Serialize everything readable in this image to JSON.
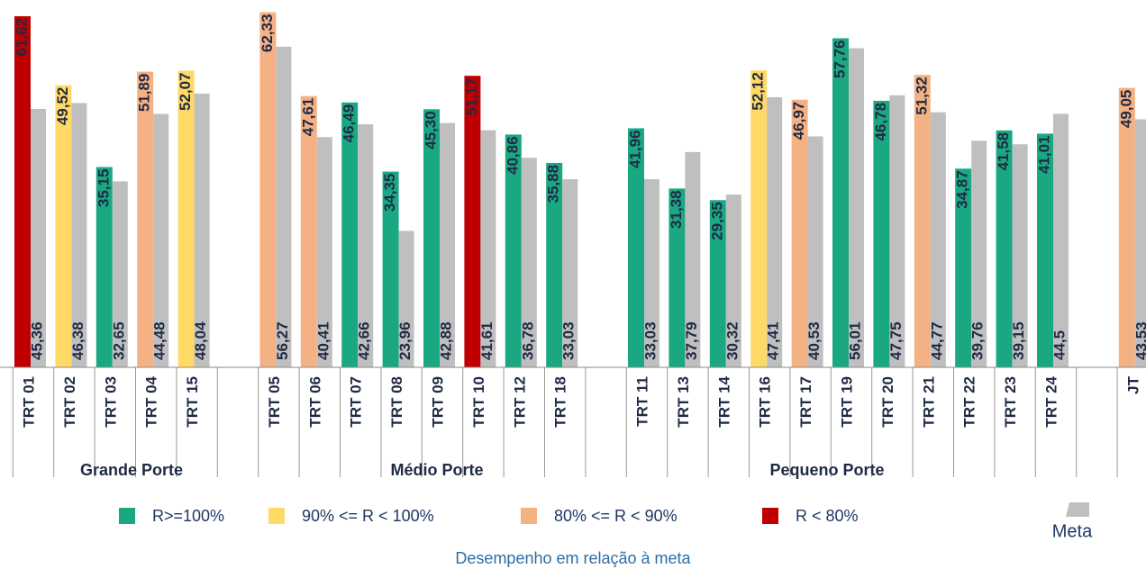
{
  "chart_data": {
    "type": "bar",
    "categories": [
      "TRT 01",
      "TRT 02",
      "TRT 03",
      "TRT 04",
      "TRT 15",
      null,
      "TRT 05",
      "TRT 06",
      "TRT 07",
      "TRT 08",
      "TRT 09",
      "TRT 10",
      "TRT 12",
      "TRT 18",
      null,
      "TRT 11",
      "TRT 13",
      "TRT 14",
      "TRT 16",
      "TRT 17",
      "TRT 19",
      "TRT 20",
      "TRT 21",
      "TRT 22",
      "TRT 23",
      "TRT 24",
      null,
      "JT"
    ],
    "series": [
      {
        "values": [
          61.62,
          49.52,
          35.15,
          51.89,
          52.07,
          null,
          62.33,
          47.61,
          46.49,
          34.35,
          45.3,
          51.17,
          40.86,
          35.88,
          null,
          41.96,
          31.38,
          29.35,
          52.12,
          46.97,
          57.76,
          46.78,
          51.32,
          34.87,
          41.58,
          41.01,
          null,
          49.05
        ],
        "value_labels": [
          "61,62",
          "49,52",
          "35,15",
          "51,89",
          "52,07",
          null,
          "62,33",
          "47,61",
          "46,49",
          "34,35",
          "45,30",
          "51,17",
          "40,86",
          "35,88",
          null,
          "41,96",
          "31,38",
          "29,35",
          "52,12",
          "46,97",
          "57,76",
          "46,78",
          "51,32",
          "34,87",
          "41,58",
          "41,01",
          null,
          "49,05"
        ],
        "colors": [
          "#c00000",
          "#ffd966",
          "#1aa882",
          "#f4b183",
          "#ffd966",
          null,
          "#f4b183",
          "#f4b183",
          "#1aa882",
          "#1aa882",
          "#1aa882",
          "#c00000",
          "#1aa882",
          "#1aa882",
          null,
          "#1aa882",
          "#1aa882",
          "#1aa882",
          "#ffd966",
          "#f4b183",
          "#1aa882",
          "#1aa882",
          "#f4b183",
          "#1aa882",
          "#1aa882",
          "#1aa882",
          null,
          "#f4b183"
        ]
      },
      {
        "name": "Meta",
        "color": "#bfbfbf",
        "values": [
          45.36,
          46.38,
          32.65,
          44.48,
          48.04,
          null,
          56.27,
          40.41,
          42.66,
          23.96,
          42.88,
          41.61,
          36.78,
          33.03,
          null,
          33.03,
          37.79,
          30.32,
          47.41,
          40.53,
          56.01,
          47.75,
          44.77,
          39.76,
          39.15,
          44.5,
          null,
          43.53
        ],
        "value_labels": [
          "45,36",
          "46,38",
          "32,65",
          "44,48",
          "48,04",
          null,
          "56,27",
          "40,41",
          "42,66",
          "23,96",
          "42,88",
          "41,61",
          "36,78",
          "33,03",
          null,
          "33,03",
          "37,79",
          "30,32",
          "47,41",
          "40,53",
          "56,01",
          "47,75",
          "44,77",
          "39,76",
          "39,15",
          "44,5",
          null,
          "43,53"
        ]
      }
    ],
    "groups": [
      "Grande Porte",
      "Médio Porte",
      "Pequeno Porte"
    ],
    "status_legend": [
      {
        "name": "R>=100%",
        "color": "#1aa882"
      },
      {
        "name": "90% <= R < 100%",
        "color": "#ffd966"
      },
      {
        "name": "80% <= R < 90%",
        "color": "#f4b183"
      },
      {
        "name": "R < 80%",
        "color": "#c00000"
      }
    ],
    "legend_title": "Desempenho em relação à meta",
    "ylim": [
      0,
      64
    ]
  }
}
